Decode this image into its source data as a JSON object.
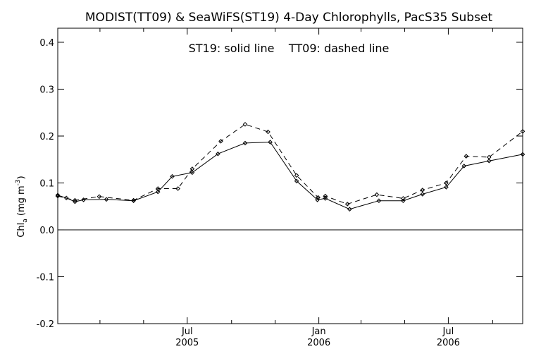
{
  "chart_data": {
    "type": "line",
    "title": "MODIST(TT09) & SeaWiFS(ST19) 4-Day Chlorophylls, PacS35 Subset",
    "annotation": "ST19: solid line    TT09: dashed line",
    "ylabel": {
      "main": "Chl",
      "sub": "a",
      "unit_open": " (mg m",
      "sup": "-3",
      "unit_close": ")"
    },
    "xlabel": "",
    "ylim": [
      -0.2,
      0.43
    ],
    "y_ticks": [
      -0.2,
      -0.1,
      0.0,
      0.1,
      0.2,
      0.3,
      0.4
    ],
    "y_tick_labels": [
      "-0.2",
      "-0.1",
      "0.0",
      "0.1",
      "0.2",
      "0.3",
      "0.4"
    ],
    "x_range": [
      "2005-01-01",
      "2006-10-13"
    ],
    "x_major_ticks": [
      {
        "date": "2005-07-01",
        "month": "Jul",
        "year": "2005"
      },
      {
        "date": "2006-01-01",
        "month": "Jan",
        "year": "2006"
      },
      {
        "date": "2006-07-01",
        "month": "Jul",
        "year": "2006"
      }
    ],
    "x_minor_ticks": [
      "2005-03-01",
      "2005-05-01",
      "2005-09-01",
      "2005-11-01",
      "2006-03-01",
      "2006-05-01",
      "2006-09-01"
    ],
    "zero_line": true,
    "grid": false,
    "series": [
      {
        "name": "ST19",
        "style": "solid",
        "color": "#000000",
        "points": [
          [
            "2005-01-01",
            0.074
          ],
          [
            "2005-01-13",
            0.068
          ],
          [
            "2005-01-25",
            0.06
          ],
          [
            "2005-02-06",
            0.064
          ],
          [
            "2005-03-10",
            0.065
          ],
          [
            "2005-04-17",
            0.062
          ],
          [
            "2005-05-21",
            0.081
          ],
          [
            "2005-06-10",
            0.114
          ],
          [
            "2005-07-08",
            0.122
          ],
          [
            "2005-08-13",
            0.162
          ],
          [
            "2005-09-20",
            0.185
          ],
          [
            "2005-10-25",
            0.187
          ],
          [
            "2005-12-01",
            0.104
          ],
          [
            "2005-12-30",
            0.064
          ],
          [
            "2006-01-10",
            0.067
          ],
          [
            "2006-02-13",
            0.044
          ],
          [
            "2006-03-26",
            0.062
          ],
          [
            "2006-04-29",
            0.062
          ],
          [
            "2006-05-26",
            0.076
          ],
          [
            "2006-06-28",
            0.091
          ],
          [
            "2006-07-23",
            0.136
          ],
          [
            "2006-08-27",
            0.147
          ],
          [
            "2006-10-13",
            0.161
          ]
        ]
      },
      {
        "name": "TT09",
        "style": "dashed",
        "color": "#000000",
        "points": [
          [
            "2005-01-01",
            0.072
          ],
          [
            "2005-01-25",
            0.063
          ],
          [
            "2005-02-28",
            0.071
          ],
          [
            "2005-04-17",
            0.063
          ],
          [
            "2005-05-21",
            0.088
          ],
          [
            "2005-06-18",
            0.088
          ],
          [
            "2005-07-08",
            0.13
          ],
          [
            "2005-08-17",
            0.189
          ],
          [
            "2005-09-20",
            0.225
          ],
          [
            "2005-10-22",
            0.209
          ],
          [
            "2005-12-01",
            0.116
          ],
          [
            "2005-12-31",
            0.069
          ],
          [
            "2006-01-10",
            0.072
          ],
          [
            "2006-02-10",
            0.055
          ],
          [
            "2006-03-23",
            0.075
          ],
          [
            "2006-04-29",
            0.067
          ],
          [
            "2006-05-26",
            0.085
          ],
          [
            "2006-06-28",
            0.1
          ],
          [
            "2006-07-26",
            0.157
          ],
          [
            "2006-08-27",
            0.155
          ],
          [
            "2006-10-13",
            0.21
          ]
        ]
      }
    ]
  }
}
